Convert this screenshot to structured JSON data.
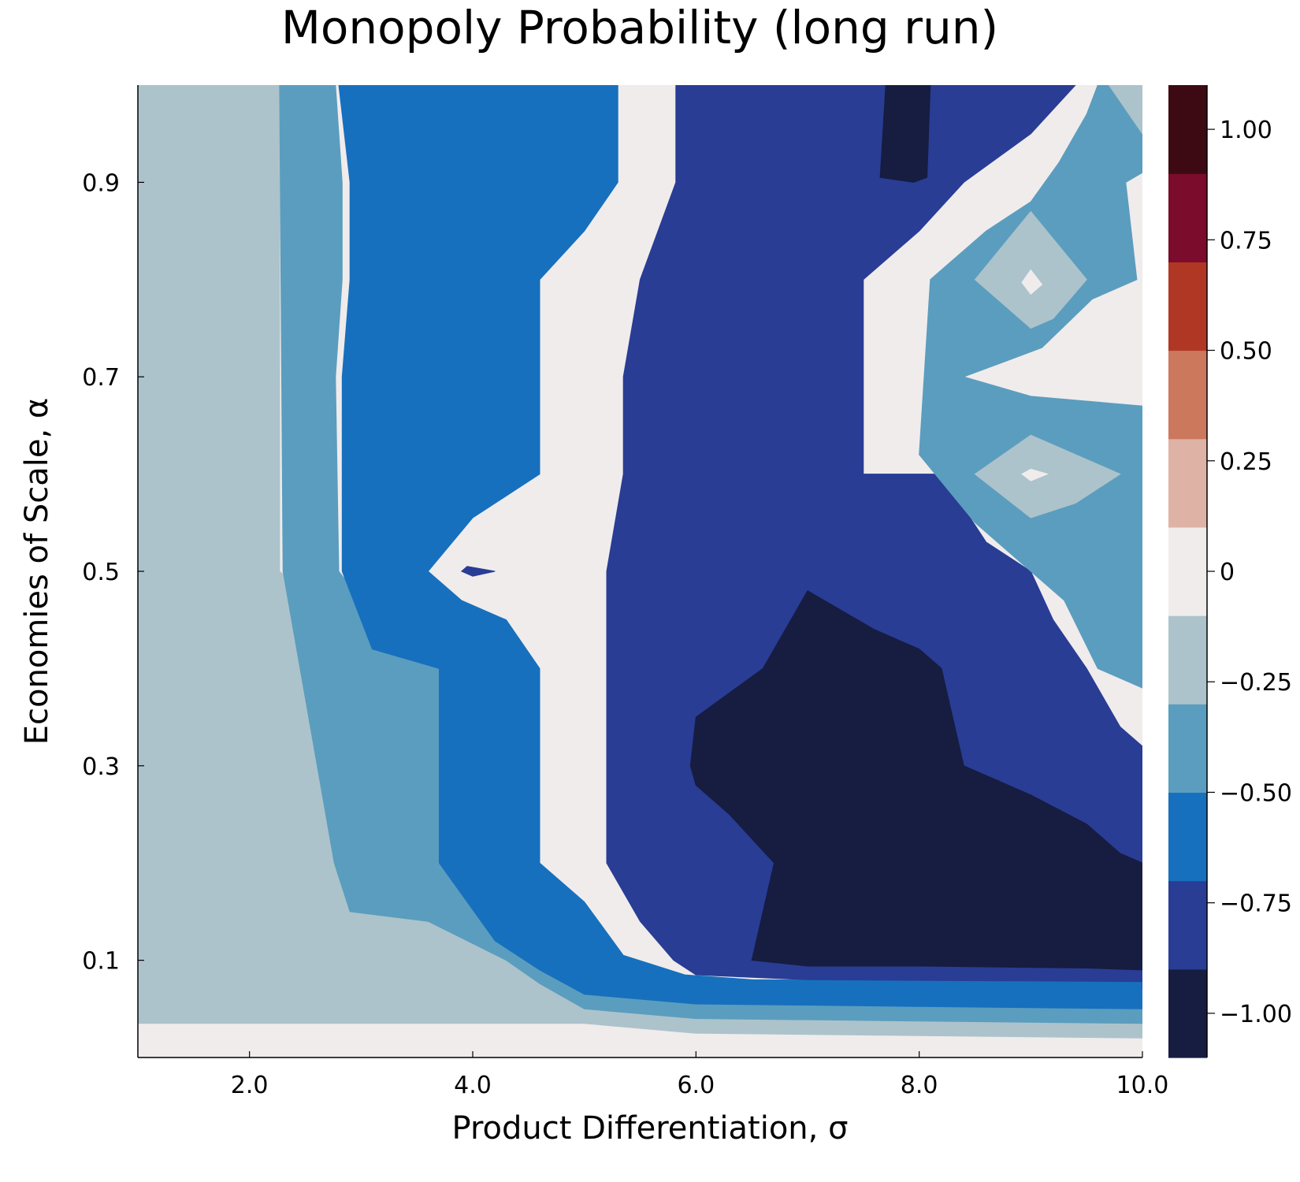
{
  "chart_data": {
    "type": "contour",
    "title": "Monopoly Probability (long run)",
    "xlabel": "Product Differentiation, σ",
    "ylabel": "Economies of Scale, α",
    "xlim": [
      1.0,
      10.0
    ],
    "ylim": [
      0.0,
      1.0
    ],
    "xticks": [
      2.0,
      4.0,
      6.0,
      8.0,
      10.0
    ],
    "xtick_labels": [
      "2.0",
      "4.0",
      "6.0",
      "8.0",
      "10.0"
    ],
    "yticks": [
      0.1,
      0.3,
      0.5,
      0.7,
      0.9
    ],
    "ytick_labels": [
      "0.1",
      "0.3",
      "0.5",
      "0.7",
      "0.9"
    ],
    "grid": false,
    "colorbar": {
      "range": [
        -1.0,
        1.0
      ],
      "ticks": [
        1.0,
        0.75,
        0.5,
        0.25,
        0,
        -0.25,
        -0.5,
        -0.75,
        -1.0
      ],
      "tick_labels": [
        "1.00",
        "0.75",
        "0.50",
        "0.25",
        "0",
        "−0.25",
        "−0.50",
        "−0.75",
        "−1.00"
      ],
      "colors": [
        "#171d41",
        "#293d95",
        "#1770bd",
        "#5b9dbe",
        "#acc3cb",
        "#f0ecec",
        "#dfb2a6",
        "#cc785d",
        "#b13725",
        "#7b0c2b",
        "#3d0a14"
      ]
    },
    "regions": [
      {
        "color": "#acc3cb",
        "points": [
          [
            2.27,
            1.0
          ],
          [
            2.27,
            0.5
          ],
          [
            2.97,
            0.43
          ],
          [
            3.57,
            0.4
          ],
          [
            3.57,
            0.2
          ],
          [
            4.2,
            0.13
          ],
          [
            5.0,
            0.09
          ],
          [
            6.0,
            0.07
          ],
          [
            7.0,
            0.066
          ],
          [
            10.0,
            0.06
          ],
          [
            10.0,
            0.02
          ],
          [
            6.0,
            0.025
          ],
          [
            5.0,
            0.035
          ],
          [
            1.0,
            0.035
          ],
          [
            1.0,
            1.0
          ]
        ]
      },
      {
        "color": "#5b9dbe",
        "points": [
          [
            2.77,
            1.0
          ],
          [
            2.83,
            0.9
          ],
          [
            2.83,
            0.8
          ],
          [
            2.77,
            0.7
          ],
          [
            2.8,
            0.5
          ],
          [
            3.0,
            0.47
          ],
          [
            3.3,
            0.44
          ],
          [
            3.9,
            0.4
          ],
          [
            3.85,
            0.2
          ],
          [
            4.3,
            0.14
          ],
          [
            4.6,
            0.12
          ],
          [
            5.0,
            0.1
          ],
          [
            6.0,
            0.08
          ],
          [
            6.5,
            0.075
          ],
          [
            10.0,
            0.072
          ],
          [
            10.0,
            0.035
          ],
          [
            6.0,
            0.04
          ],
          [
            5.0,
            0.05
          ],
          [
            4.6,
            0.076
          ],
          [
            4.3,
            0.1
          ],
          [
            3.6,
            0.14
          ],
          [
            2.9,
            0.15
          ],
          [
            2.76,
            0.2
          ],
          [
            2.3,
            0.5
          ],
          [
            2.27,
            1.0
          ]
        ]
      },
      {
        "color": "#1770bd",
        "points": [
          [
            5.3,
            1.0
          ],
          [
            5.3,
            0.9
          ],
          [
            5.0,
            0.85
          ],
          [
            4.6,
            0.8
          ],
          [
            4.6,
            0.6
          ],
          [
            4.0,
            0.555
          ],
          [
            3.6,
            0.5
          ],
          [
            3.9,
            0.47
          ],
          [
            4.3,
            0.45
          ],
          [
            4.6,
            0.4
          ],
          [
            4.6,
            0.2
          ],
          [
            5.0,
            0.16
          ],
          [
            5.35,
            0.105
          ],
          [
            5.9,
            0.085
          ],
          [
            6.5,
            0.08
          ],
          [
            10.0,
            0.078
          ],
          [
            10.0,
            0.05
          ],
          [
            6.0,
            0.055
          ],
          [
            5.0,
            0.065
          ],
          [
            4.6,
            0.09
          ],
          [
            4.2,
            0.12
          ],
          [
            3.7,
            0.2
          ],
          [
            3.7,
            0.4
          ],
          [
            3.1,
            0.42
          ],
          [
            2.83,
            0.5
          ],
          [
            2.83,
            0.7
          ],
          [
            2.9,
            0.8
          ],
          [
            2.9,
            0.9
          ],
          [
            2.8,
            1.0
          ]
        ]
      },
      {
        "color": "#293d95",
        "points": [
          [
            5.82,
            1.0
          ],
          [
            5.82,
            0.9
          ],
          [
            5.5,
            0.8
          ],
          [
            5.35,
            0.7
          ],
          [
            5.35,
            0.6
          ],
          [
            5.2,
            0.5
          ],
          [
            5.2,
            0.4
          ],
          [
            5.2,
            0.2
          ],
          [
            5.5,
            0.14
          ],
          [
            5.8,
            0.1
          ],
          [
            6.0,
            0.085
          ],
          [
            7.0,
            0.08
          ],
          [
            10.0,
            0.078
          ],
          [
            10.0,
            0.07
          ],
          [
            10.0,
            0.2
          ],
          [
            10.0,
            0.32
          ],
          [
            9.8,
            0.34
          ],
          [
            9.5,
            0.4
          ],
          [
            9.2,
            0.45
          ],
          [
            9.0,
            0.5
          ],
          [
            8.6,
            0.53
          ],
          [
            8.2,
            0.6
          ],
          [
            7.5,
            0.6
          ],
          [
            7.5,
            0.8
          ],
          [
            8.0,
            0.85
          ],
          [
            8.4,
            0.9
          ],
          [
            9.0,
            0.95
          ],
          [
            9.4,
            1.0
          ]
        ]
      },
      {
        "color": "#171d41",
        "points": [
          [
            6.0,
            0.35
          ],
          [
            6.6,
            0.4
          ],
          [
            7.0,
            0.48
          ],
          [
            7.6,
            0.44
          ],
          [
            8.0,
            0.42
          ],
          [
            8.2,
            0.4
          ],
          [
            8.4,
            0.3
          ],
          [
            9.0,
            0.27
          ],
          [
            9.5,
            0.24
          ],
          [
            9.8,
            0.21
          ],
          [
            10.0,
            0.2
          ],
          [
            10.0,
            0.09
          ],
          [
            9.5,
            0.092
          ],
          [
            8.0,
            0.094
          ],
          [
            7.0,
            0.094
          ],
          [
            6.5,
            0.1
          ],
          [
            6.7,
            0.2
          ],
          [
            6.3,
            0.25
          ],
          [
            6.0,
            0.28
          ],
          [
            5.95,
            0.3
          ],
          [
            6.0,
            0.35
          ]
        ]
      },
      {
        "color": "#171d41",
        "points": [
          [
            7.7,
            1.0
          ],
          [
            8.1,
            1.0
          ],
          [
            8.07,
            0.905
          ],
          [
            7.95,
            0.9
          ],
          [
            7.65,
            0.905
          ],
          [
            7.7,
            1.0
          ]
        ]
      },
      {
        "color": "#1770bd",
        "points": [
          [
            9.6,
            1.0
          ],
          [
            10.0,
            1.0
          ],
          [
            10.0,
            0.95
          ],
          [
            9.7,
            0.97
          ],
          [
            9.6,
            1.0
          ]
        ]
      },
      {
        "color": "#5b9dbe",
        "points": [
          [
            10.0,
            0.91
          ],
          [
            9.85,
            0.9
          ],
          [
            9.95,
            0.8
          ],
          [
            9.55,
            0.78
          ],
          [
            9.1,
            0.73
          ],
          [
            8.4,
            0.7
          ],
          [
            9.0,
            0.68
          ],
          [
            10.0,
            0.67
          ],
          [
            10.0,
            0.38
          ],
          [
            9.6,
            0.4
          ],
          [
            9.3,
            0.47
          ],
          [
            9.0,
            0.5
          ],
          [
            8.5,
            0.55
          ],
          [
            8.0,
            0.62
          ],
          [
            8.1,
            0.8
          ],
          [
            8.6,
            0.85
          ],
          [
            9.0,
            0.88
          ],
          [
            9.25,
            0.92
          ],
          [
            9.5,
            0.97
          ],
          [
            9.6,
            1.0
          ],
          [
            9.7,
            1.0
          ],
          [
            10.0,
            0.95
          ]
        ]
      },
      {
        "color": "#acc3cb",
        "points": [
          [
            9.0,
            0.87
          ],
          [
            9.5,
            0.8
          ],
          [
            9.2,
            0.76
          ],
          [
            9.0,
            0.75
          ],
          [
            8.5,
            0.8
          ],
          [
            9.0,
            0.87
          ]
        ]
      },
      {
        "color": "#acc3cb",
        "points": [
          [
            9.0,
            0.64
          ],
          [
            9.8,
            0.6
          ],
          [
            9.4,
            0.57
          ],
          [
            9.0,
            0.555
          ],
          [
            8.5,
            0.6
          ],
          [
            9.0,
            0.64
          ]
        ]
      },
      {
        "color": "#acc3cb",
        "points": [
          [
            9.7,
            1.0
          ],
          [
            10.0,
            1.0
          ],
          [
            10.0,
            0.95
          ],
          [
            9.7,
            1.0
          ]
        ]
      },
      {
        "color": "#f0ecec",
        "points": [
          [
            9.0,
            0.81
          ],
          [
            9.1,
            0.795
          ],
          [
            9.0,
            0.785
          ],
          [
            8.92,
            0.797
          ]
        ]
      },
      {
        "color": "#f0ecec",
        "points": [
          [
            9.0,
            0.605
          ],
          [
            9.15,
            0.6
          ],
          [
            9.0,
            0.593
          ],
          [
            8.92,
            0.6
          ]
        ]
      },
      {
        "color": "#293d95",
        "points": [
          [
            3.95,
            0.505
          ],
          [
            4.2,
            0.5
          ],
          [
            4.0,
            0.495
          ],
          [
            3.9,
            0.5
          ]
        ]
      }
    ]
  }
}
